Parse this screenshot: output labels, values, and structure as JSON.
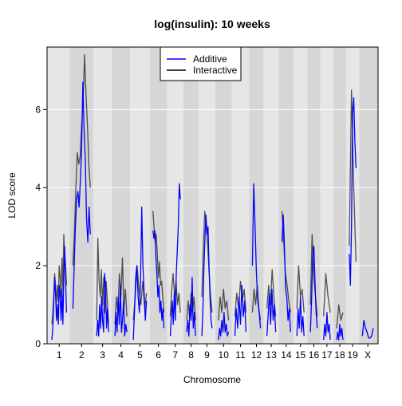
{
  "chart_data": {
    "type": "line",
    "title": "log(insulin): 10 weeks",
    "xlabel": "Chromosome",
    "ylabel": "LOD score",
    "ylim": [
      0,
      7.6
    ],
    "y_ticks": [
      0,
      2,
      4,
      6
    ],
    "grid": true,
    "legend_position": "top-center",
    "chromosomes": [
      "1",
      "2",
      "3",
      "4",
      "5",
      "6",
      "7",
      "8",
      "9",
      "10",
      "11",
      "12",
      "13",
      "14",
      "15",
      "16",
      "17",
      "18",
      "19",
      "X"
    ],
    "chromosome_lengths_cM": [
      100,
      115,
      84,
      85,
      92,
      79,
      74,
      67,
      75,
      74,
      80,
      63,
      67,
      65,
      58,
      56,
      55,
      53,
      55,
      79
    ],
    "series": [
      {
        "name": "Additive",
        "color": "#0000ff",
        "peaks": [
          {
            "chr": "1",
            "values": [
              0.1,
              0.4,
              1.0,
              1.7,
              1.3,
              0.6,
              1.0,
              0.5,
              1.5,
              1.2,
              0.6,
              1.4,
              0.5,
              1.7,
              2.5,
              1.6,
              0.8
            ]
          },
          {
            "chr": "2",
            "values": [
              0.9,
              2.0,
              3.0,
              3.7,
              3.9,
              3.5,
              4.2,
              5.0,
              6.7,
              5.5,
              4.7,
              3.2,
              2.6,
              3.5,
              2.8
            ]
          },
          {
            "chr": "3",
            "values": [
              0.2,
              0.6,
              0.2,
              1.0,
              0.4,
              1.2,
              0.6,
              0.3,
              1.8,
              1.5,
              0.4,
              0.9,
              0.3
            ]
          },
          {
            "chr": "4",
            "values": [
              0.2,
              0.8,
              0.3,
              1.2,
              0.5,
              1.5,
              0.3,
              0.6,
              1.1,
              0.2,
              0.5,
              0.3
            ]
          },
          {
            "chr": "5",
            "values": [
              0.1,
              0.8,
              1.7,
              2.0,
              1.2,
              0.8,
              1.6,
              3.5,
              2.0,
              1.3,
              0.6,
              1.1
            ]
          },
          {
            "chr": "6",
            "values": [
              2.9,
              2.7,
              2.9,
              2.2,
              1.8,
              1.2,
              1.5,
              0.8,
              1.1,
              0.6,
              0.9,
              0.4
            ]
          },
          {
            "chr": "7",
            "values": [
              0.2,
              0.7,
              1.1,
              0.5,
              1.3,
              0.6,
              1.8,
              2.4,
              3.0,
              4.1,
              3.7
            ]
          },
          {
            "chr": "8",
            "values": [
              0.3,
              0.6,
              0.2,
              1.0,
              0.6,
              1.7,
              0.4,
              0.8,
              0.2
            ]
          },
          {
            "chr": "9",
            "values": [
              0.2,
              0.9,
              1.9,
              2.7,
              3.3,
              2.8,
              3.0,
              2.0,
              1.2,
              0.6,
              0.4
            ]
          },
          {
            "chr": "10",
            "values": [
              0.1,
              0.4,
              0.2,
              0.6,
              0.3,
              0.8,
              0.3,
              0.5,
              0.2,
              0.3
            ]
          },
          {
            "chr": "11",
            "values": [
              0.2,
              0.9,
              0.4,
              1.2,
              0.5,
              1.5,
              0.7,
              1.1,
              0.3
            ]
          },
          {
            "chr": "12",
            "values": [
              2.0,
              4.1,
              3.0,
              1.8,
              1.1,
              0.8,
              0.4
            ]
          },
          {
            "chr": "13",
            "values": [
              0.2,
              0.7,
              1.3,
              0.5,
              1.4,
              0.6,
              1.0,
              0.3
            ]
          },
          {
            "chr": "14",
            "values": [
              2.6,
              3.3,
              2.5,
              1.4,
              1.2,
              0.6,
              0.9,
              0.3
            ]
          },
          {
            "chr": "15",
            "values": [
              0.2,
              0.9,
              0.4,
              1.2,
              0.3,
              0.7,
              0.2
            ]
          },
          {
            "chr": "16",
            "values": [
              0.3,
              1.1,
              2.2,
              2.5,
              1.6,
              0.8,
              0.4
            ]
          },
          {
            "chr": "17",
            "values": [
              0.1,
              0.5,
              0.2,
              0.8,
              0.3,
              0.5,
              0.1
            ]
          },
          {
            "chr": "18",
            "values": [
              0.1,
              0.3,
              0.1,
              0.5,
              0.2,
              0.4,
              0.1
            ]
          },
          {
            "chr": "19",
            "values": [
              2.3,
              1.5,
              3.0,
              5.9,
              6.3,
              5.2,
              4.5
            ]
          },
          {
            "chr": "X",
            "values": [
              0.2,
              0.6,
              0.4,
              0.3,
              0.15,
              0.15,
              0.2,
              0.4
            ]
          }
        ]
      },
      {
        "name": "Interactive",
        "color": "#000000",
        "peaks": [
          {
            "chr": "1",
            "values": [
              0.5,
              0.8,
              1.2,
              1.8,
              1.5,
              1.0,
              1.5,
              1.1,
              2.0,
              1.7,
              1.2,
              2.2,
              1.4,
              2.8,
              2.3,
              2.0,
              1.5
            ]
          },
          {
            "chr": "2",
            "values": [
              2.0,
              2.8,
              4.0,
              4.9,
              4.6,
              4.8,
              5.6,
              6.2,
              7.4,
              6.4,
              5.6,
              4.6,
              4.0
            ]
          },
          {
            "chr": "3",
            "values": [
              0.6,
              2.7,
              1.6,
              1.2,
              1.9,
              1.0,
              1.7,
              0.8,
              1.6,
              1.1,
              0.5
            ]
          },
          {
            "chr": "4",
            "values": [
              0.5,
              1.2,
              0.8,
              1.8,
              1.2,
              2.2,
              0.9,
              1.4,
              0.7
            ]
          },
          {
            "chr": "5",
            "values": [
              0.6,
              1.2,
              2.0,
              1.4,
              1.0,
              1.6,
              0.9,
              1.3
            ]
          },
          {
            "chr": "6",
            "values": [
              3.4,
              3.0,
              2.6,
              2.8,
              2.3,
              1.7,
              2.1,
              1.5,
              1.6,
              1.2,
              0.8
            ]
          },
          {
            "chr": "7",
            "values": [
              0.7,
              1.4,
              1.8,
              1.2,
              1.6,
              1.0,
              1.3,
              0.8
            ]
          },
          {
            "chr": "8",
            "values": [
              0.6,
              1.1,
              0.7,
              1.3,
              0.8,
              1.2,
              0.6
            ]
          },
          {
            "chr": "9",
            "values": [
              1.2,
              2.5,
              3.4,
              3.0,
              2.5,
              1.8,
              1.2,
              0.8
            ]
          },
          {
            "chr": "10",
            "values": [
              0.6,
              1.2,
              0.8,
              1.4,
              0.9,
              1.1,
              0.6
            ]
          },
          {
            "chr": "11",
            "values": [
              0.7,
              1.3,
              0.9,
              1.6,
              1.1,
              1.4,
              0.8
            ]
          },
          {
            "chr": "12",
            "values": [
              0.8,
              1.4,
              1.0,
              1.5,
              0.9,
              0.6
            ]
          },
          {
            "chr": "13",
            "values": [
              0.9,
              1.5,
              1.0,
              1.9,
              1.2,
              0.7
            ]
          },
          {
            "chr": "14",
            "values": [
              3.4,
              2.6,
              1.8,
              1.5,
              1.1,
              0.8
            ]
          },
          {
            "chr": "15",
            "values": [
              0.9,
              2.0,
              1.2,
              1.4,
              0.8
            ]
          },
          {
            "chr": "16",
            "values": [
              1.0,
              2.8,
              1.7,
              1.2,
              0.7
            ]
          },
          {
            "chr": "17",
            "values": [
              0.7,
              1.8,
              1.2,
              0.8
            ]
          },
          {
            "chr": "18",
            "values": [
              0.4,
              1.0,
              0.6,
              0.8
            ]
          },
          {
            "chr": "19",
            "values": [
              2.5,
              6.5,
              4.0,
              2.1
            ]
          },
          {
            "chr": "X",
            "values": []
          }
        ]
      }
    ]
  }
}
